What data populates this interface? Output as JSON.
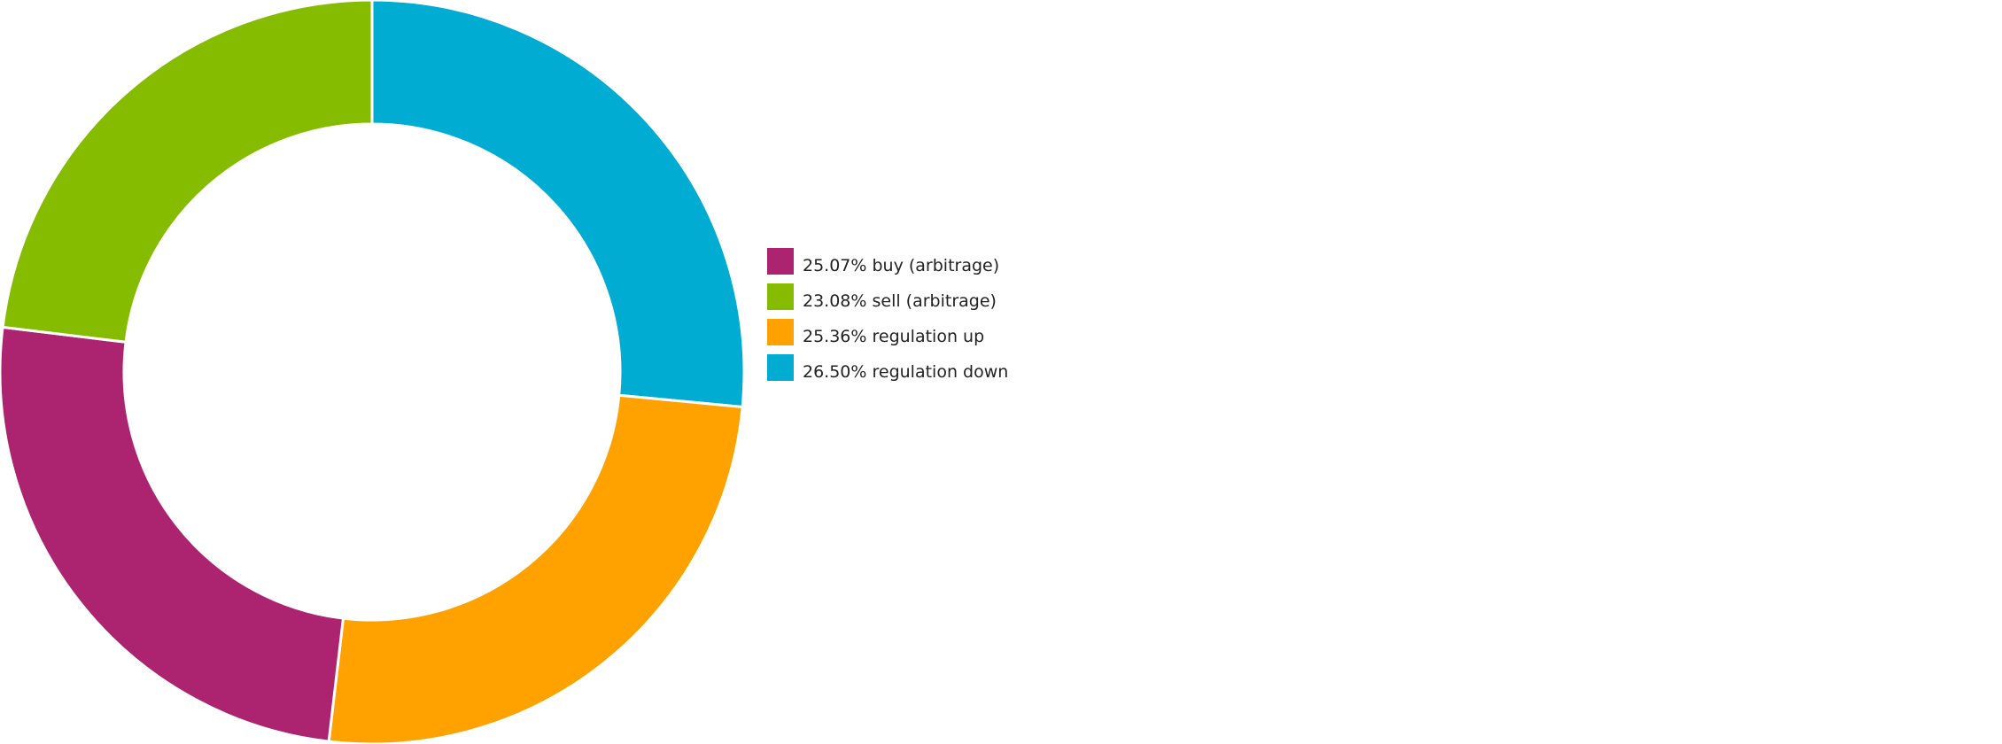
{
  "chart_data": {
    "type": "pie",
    "donut": true,
    "start": "top",
    "direction": "clockwise",
    "legend_position": "right",
    "slices": [
      {
        "label": "regulation down",
        "value": 26.5,
        "legend": "26.50% regulation down",
        "color": "#00acd1"
      },
      {
        "label": "regulation up",
        "value": 25.36,
        "legend": "25.36% regulation up",
        "color": "#ffa200"
      },
      {
        "label": "buy (arbitrage)",
        "value": 25.07,
        "legend": "25.07% buy (arbitrage)",
        "color": "#ac2370"
      },
      {
        "label": "sell (arbitrage)",
        "value": 23.08,
        "legend": "23.08% sell (arbitrage)",
        "color": "#86bc00"
      }
    ],
    "legend_order": [
      "buy (arbitrage)",
      "sell (arbitrage)",
      "regulation up",
      "regulation down"
    ]
  }
}
